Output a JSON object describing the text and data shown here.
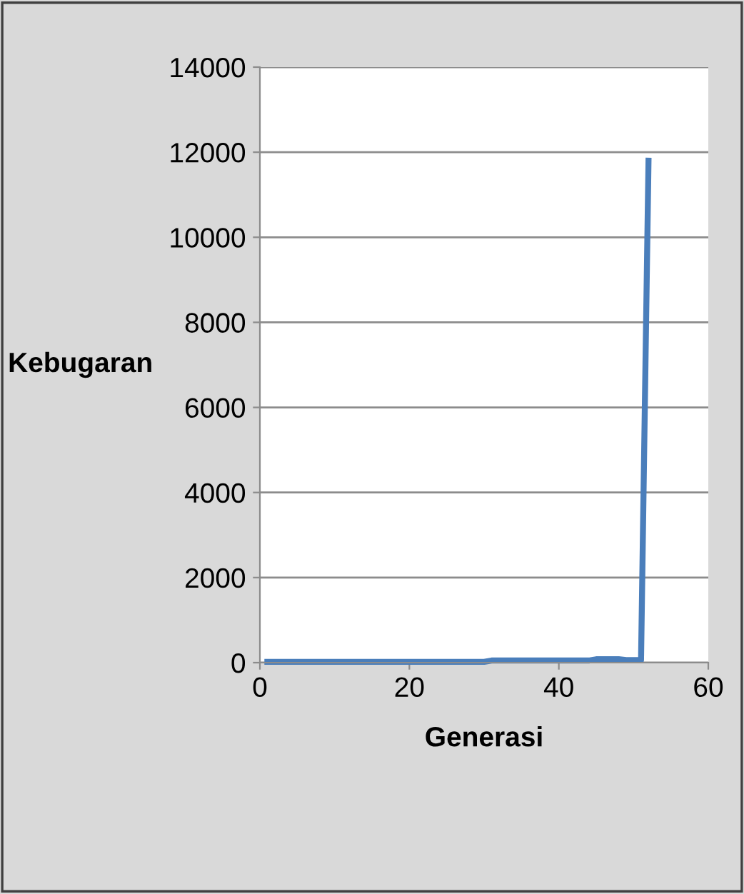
{
  "chart_data": {
    "type": "line",
    "xlabel": "Generasi",
    "ylabel": "Kebugaran",
    "x": [
      1,
      10,
      20,
      30,
      31,
      40,
      44,
      45,
      48,
      49,
      50,
      51,
      52
    ],
    "values": [
      20,
      20,
      20,
      20,
      50,
      50,
      50,
      80,
      80,
      60,
      60,
      60,
      11800
    ],
    "color": "#4a7ebb",
    "xlim": [
      0,
      60
    ],
    "xticks": [
      0,
      20,
      40,
      60
    ],
    "ylim": [
      0,
      14000
    ],
    "yticks": [
      0,
      2000,
      4000,
      6000,
      8000,
      10000,
      12000,
      14000
    ],
    "grid": "y",
    "legend": false,
    "marker": "none",
    "line_style": "solid"
  }
}
